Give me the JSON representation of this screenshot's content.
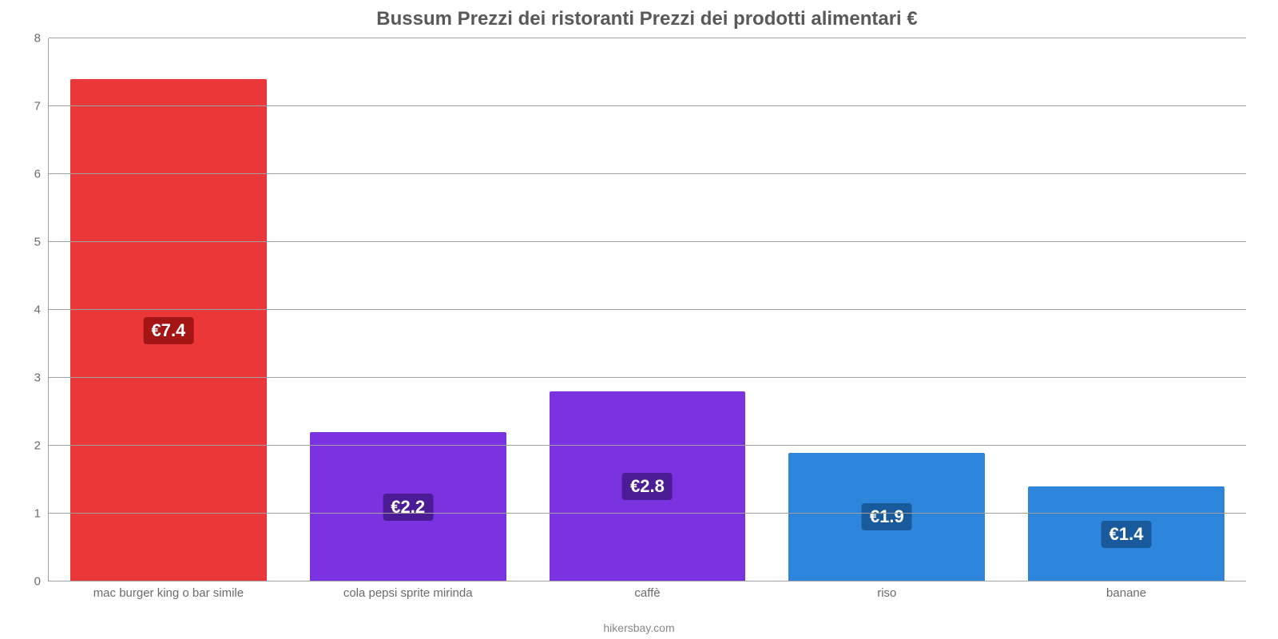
{
  "chart": {
    "type": "bar",
    "title": "Bussum Prezzi dei ristoranti Prezzi dei prodotti alimentari €",
    "title_color": "#595959",
    "title_fontsize": 24,
    "background_color": "#ffffff",
    "axis_line_color": "#a0a0a0",
    "grid_color": "#a0a0a0",
    "tick_label_color": "#6b6b6b",
    "tick_label_fontsize": 15,
    "ylim": [
      0,
      8
    ],
    "ytick_step": 1,
    "yticks": [
      0,
      1,
      2,
      3,
      4,
      5,
      6,
      7,
      8
    ],
    "bar_width_ratio": 0.82,
    "value_label_fontsize": 22,
    "value_label_text_color": "#ffffff",
    "categories": [
      "mac burger king o bar simile",
      "cola pepsi sprite mirinda",
      "caffè",
      "riso",
      "banane"
    ],
    "values": [
      7.4,
      2.2,
      2.8,
      1.9,
      1.4
    ],
    "value_labels": [
      "€7.4",
      "€2.2",
      "€2.8",
      "€1.9",
      "€1.4"
    ],
    "bar_colors": [
      "#eb3737",
      "#7b32e0",
      "#7b32e0",
      "#2e86dc",
      "#2e86dc"
    ],
    "value_label_bg_colors": [
      "#a61515",
      "#4c1c96",
      "#4c1c96",
      "#185a9c",
      "#185a9c"
    ],
    "attribution": "hikersbay.com",
    "attribution_color": "#888888"
  }
}
